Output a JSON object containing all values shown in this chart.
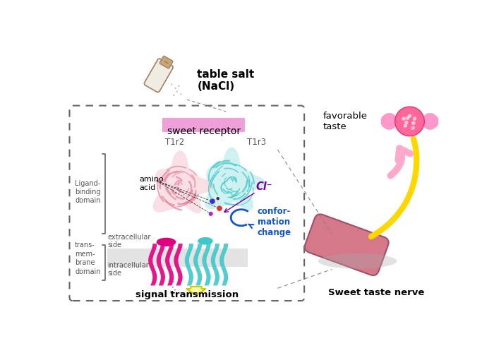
{
  "bg_color": "#ffffff",
  "title_table_salt": "table salt\n(NaCl)",
  "label_sweet_receptor": "sweet receptor",
  "label_T1r2": "T1r2",
  "label_T1r3": "T1r3",
  "label_amino_acid": "amino\nacid",
  "label_Cl": "Cl⁻",
  "label_conformation": "confor-\nmation\nchange",
  "label_ligand_binding": "Ligand-\nbinding\ndomain",
  "label_transmembrane": "trans-\nmem-\nbrane\ndomain",
  "label_extracellular": "extracellular\nside",
  "label_intracellular": "intracellular\nside",
  "label_signal": "signal transmission",
  "label_favorable": "favorable\ntaste",
  "label_sweet_nerve": "Sweet taste nerve",
  "pink_color": "#e8849a",
  "cyan_color": "#40c8c8",
  "magenta_color": "#e0007f",
  "purple_color": "#7700aa",
  "yellow_color": "#FFD700",
  "blue_color": "#1155cc",
  "candy_pink": "#ff69b4",
  "nerve_pink": "#d4788a"
}
